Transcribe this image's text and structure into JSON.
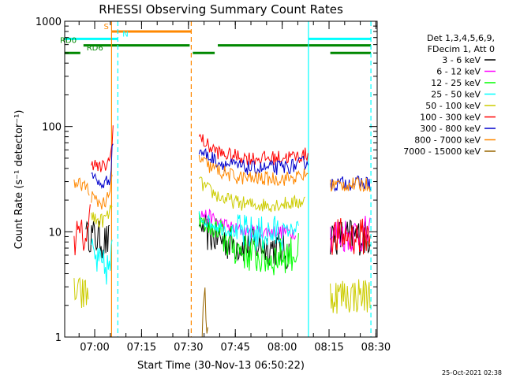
{
  "chart_data": {
    "type": "line",
    "title": "RHESSI Observing Summary Count Rates",
    "xlabel": "Start Time (30-Nov-13 06:50:22)",
    "ylabel": "Count Rate (s⁻¹ detector⁻¹)",
    "yscale": "log",
    "ylim": [
      1,
      1000
    ],
    "xlim": [
      0,
      100
    ],
    "x_unit": "minutes since 06:50:22",
    "y_ticks": [
      {
        "value": 1,
        "label": "1"
      },
      {
        "value": 10,
        "label": "10"
      },
      {
        "value": 100,
        "label": "100"
      },
      {
        "value": 1000,
        "label": "1000"
      }
    ],
    "x_ticks": [
      {
        "value": 9.6,
        "label": "07:00"
      },
      {
        "value": 24.6,
        "label": "07:15"
      },
      {
        "value": 39.6,
        "label": "07:30"
      },
      {
        "value": 54.6,
        "label": "07:45"
      },
      {
        "value": 69.6,
        "label": "08:00"
      },
      {
        "value": 84.6,
        "label": "08:15"
      },
      {
        "value": 99.6,
        "label": "08:30"
      }
    ],
    "legend_header": [
      "Det 1,3,4,5,6,9,",
      "FDecim 1, Att 0"
    ],
    "series": [
      {
        "name": "3 - 6 keV",
        "color": "#000000",
        "segments": [
          [
            [
              6.8,
              12
            ],
            [
              7.5,
              10
            ],
            [
              9,
              9
            ],
            [
              11,
              8.5
            ],
            [
              13,
              8
            ],
            [
              14.5,
              8
            ]
          ],
          [
            [
              43,
              12
            ],
            [
              45,
              10
            ],
            [
              48,
              9
            ],
            [
              52,
              8
            ],
            [
              56,
              7.5
            ],
            [
              62,
              7.5
            ],
            [
              68,
              7
            ],
            [
              72,
              6
            ]
          ],
          [
            [
              85,
              9
            ],
            [
              90,
              9
            ],
            [
              95,
              9
            ],
            [
              98,
              9
            ]
          ]
        ]
      },
      {
        "name": "6 - 12 keV",
        "color": "#ff00ff",
        "segments": [
          [
            [
              43,
              15
            ],
            [
              46,
              14
            ],
            [
              50,
              12
            ],
            [
              55,
              10.5
            ],
            [
              60,
              10
            ],
            [
              65,
              10
            ],
            [
              70,
              10
            ],
            [
              74,
              10
            ]
          ],
          [
            [
              85,
              9.5
            ],
            [
              90,
              9.5
            ],
            [
              95,
              9.5
            ],
            [
              98,
              9.5
            ]
          ]
        ]
      },
      {
        "name": "12 - 25 keV",
        "color": "#00ff00",
        "segments": [
          [
            [
              43,
              13
            ],
            [
              46,
              11
            ],
            [
              50,
              9
            ],
            [
              55,
              7
            ],
            [
              60,
              6
            ],
            [
              65,
              5.5
            ],
            [
              70,
              6
            ],
            [
              75,
              6.5
            ]
          ]
        ]
      },
      {
        "name": "25 - 50 keV",
        "color": "#00ffff",
        "segments": [
          [
            [
              8.5,
              7
            ],
            [
              9,
              6
            ],
            [
              10.5,
              5
            ],
            [
              12,
              4.5
            ],
            [
              14.5,
              4.5
            ],
            [
              15,
              6
            ],
            [
              15.2,
              7
            ]
          ],
          [
            [
              43,
              14
            ],
            [
              46,
              12.5
            ],
            [
              50,
              11
            ],
            [
              55,
              10
            ],
            [
              60,
              9.5
            ],
            [
              65,
              9.5
            ],
            [
              70,
              10
            ],
            [
              75,
              11
            ]
          ]
        ]
      },
      {
        "name": "50 - 100 keV",
        "color": "#cccc00",
        "segments": [
          [
            [
              3,
              3
            ],
            [
              3.5,
              2.5
            ],
            [
              6,
              2.5
            ],
            [
              7.8,
              2.5
            ]
          ],
          [
            [
              8.5,
              15
            ],
            [
              9.5,
              13
            ],
            [
              11,
              12.5
            ],
            [
              12.5,
              13
            ],
            [
              13.5,
              14
            ],
            [
              14.5,
              15
            ],
            [
              15.4,
              22
            ]
          ],
          [
            [
              43,
              30
            ],
            [
              46,
              25
            ],
            [
              50,
              21
            ],
            [
              55,
              19
            ],
            [
              60,
              18
            ],
            [
              65,
              18
            ],
            [
              70,
              18.5
            ],
            [
              75,
              19
            ],
            [
              77,
              20
            ]
          ],
          [
            [
              85,
              2.5
            ],
            [
              90,
              2.5
            ],
            [
              95,
              2.5
            ],
            [
              98,
              2.5
            ]
          ]
        ]
      },
      {
        "name": "100 - 300 keV",
        "color": "#ff0000",
        "segments": [
          [
            [
              3,
              9
            ],
            [
              5,
              9
            ],
            [
              7.5,
              9
            ],
            [
              8.2,
              20
            ]
          ],
          [
            [
              8.5,
              50
            ],
            [
              9,
              45
            ],
            [
              11,
              40
            ],
            [
              13,
              42
            ],
            [
              14.5,
              48
            ],
            [
              15.6,
              110
            ]
          ],
          [
            [
              43,
              80
            ],
            [
              46,
              65
            ],
            [
              50,
              55
            ],
            [
              55,
              52
            ],
            [
              60,
              50
            ],
            [
              65,
              50
            ],
            [
              70,
              51
            ],
            [
              75,
              52
            ],
            [
              78,
              55
            ]
          ],
          [
            [
              85,
              9
            ],
            [
              90,
              9
            ],
            [
              95,
              9
            ],
            [
              98,
              9
            ]
          ]
        ]
      },
      {
        "name": "300 - 800 keV",
        "color": "#0000cc",
        "segments": [
          [
            [
              8.5,
              40
            ],
            [
              9.5,
              32
            ],
            [
              11,
              28
            ],
            [
              13,
              29
            ],
            [
              14.5,
              33
            ],
            [
              15.6,
              80
            ]
          ],
          [
            [
              43,
              60
            ],
            [
              46,
              52
            ],
            [
              50,
              45
            ],
            [
              55,
              42
            ],
            [
              60,
              40
            ],
            [
              65,
              40
            ],
            [
              70,
              41
            ],
            [
              75,
              43
            ],
            [
              78,
              48
            ]
          ],
          [
            [
              85,
              28
            ],
            [
              90,
              29
            ],
            [
              95,
              29
            ],
            [
              98,
              29
            ]
          ]
        ]
      },
      {
        "name": "800 - 7000 keV",
        "color": "#ff8800",
        "segments": [
          [
            [
              3,
              28
            ],
            [
              6,
              28
            ],
            [
              7.5,
              25
            ],
            [
              8,
              22
            ]
          ],
          [
            [
              8.5,
              22
            ],
            [
              9.5,
              20
            ],
            [
              11,
              19
            ],
            [
              13,
              19
            ],
            [
              14.5,
              22
            ],
            [
              15.4,
              40
            ]
          ],
          [
            [
              43,
              50
            ],
            [
              46,
              42
            ],
            [
              50,
              37
            ],
            [
              55,
              33
            ],
            [
              60,
              32
            ],
            [
              65,
              32
            ],
            [
              70,
              32
            ],
            [
              75,
              33
            ],
            [
              78,
              36
            ]
          ],
          [
            [
              85,
              28
            ],
            [
              90,
              28
            ],
            [
              95,
              28
            ],
            [
              98,
              28
            ]
          ]
        ]
      },
      {
        "name": "7000 - 15000 keV",
        "color": "#996600",
        "segments": [
          [
            [
              44,
              1
            ],
            [
              44.5,
              1.8
            ],
            [
              45,
              2.8
            ],
            [
              45.5,
              1.5
            ],
            [
              46,
              1
            ]
          ]
        ]
      }
    ],
    "flag_bars": [
      {
        "label": "S",
        "color": "#ff8800",
        "y": 800,
        "segments": [
          [
            15,
            40.5
          ]
        ],
        "label_x": 12.5
      },
      {
        "label": "N",
        "color": "#00ffff",
        "y": 680,
        "segments": [
          [
            0,
            17
          ],
          [
            78,
            98
          ]
        ],
        "label_x": 18.5
      },
      {
        "label": "RD0",
        "color": "#008800",
        "y": 590,
        "segments": [
          [
            6,
            40
          ],
          [
            49,
            98
          ]
        ],
        "label_x": -1.5
      },
      {
        "label": "RD6",
        "color": "#008800",
        "y": 500,
        "segments": [
          [
            0,
            5
          ],
          [
            41,
            48
          ],
          [
            85,
            98
          ]
        ],
        "label_x": 7
      }
    ],
    "vertical_markers": [
      {
        "x": 15,
        "color": "#ff8800",
        "style": "solid"
      },
      {
        "x": 40.5,
        "color": "#ff8800",
        "style": "dashed"
      },
      {
        "x": 17,
        "color": "#00ffff",
        "style": "dashed"
      },
      {
        "x": 78,
        "color": "#00ffff",
        "style": "solid"
      },
      {
        "x": 98,
        "color": "#00ffff",
        "style": "dashed"
      }
    ],
    "timestamp": "25-Oct-2021 02:38"
  }
}
